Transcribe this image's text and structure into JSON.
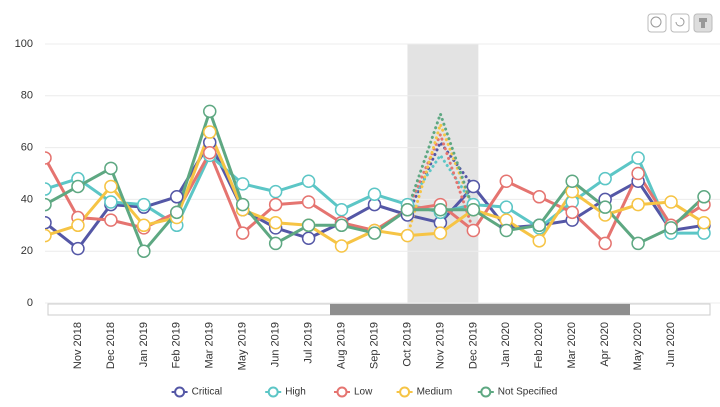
{
  "chart_data": {
    "type": "line",
    "categories": [
      null,
      "Nov 2018",
      "Dec 2018",
      "Jan 2019",
      "Feb 2019",
      "Mar 2019",
      "May 2019",
      "Jun 2019",
      "Jul 2019",
      "Aug 2019",
      "Sep 2019",
      "Oct 2019",
      "Nov 2019",
      "Dec 2019",
      "Jan 2020",
      "Feb 2020",
      "Mar 2020",
      "Apr 2020",
      "May 2020",
      "Jun 2020",
      null
    ],
    "ylim": [
      0,
      100
    ],
    "yticks": [
      0,
      20,
      40,
      60,
      80,
      100
    ],
    "grid": true,
    "highlight": [
      "Oct 2019",
      "Dec 2019"
    ],
    "series": [
      {
        "name": "Critical",
        "color": "#5457a6",
        "dotted_peak": 62,
        "values": [
          31,
          21,
          38,
          37,
          41,
          62,
          36,
          29,
          25,
          31,
          38,
          34,
          31,
          45,
          29,
          30,
          32,
          40,
          47,
          28,
          30
        ]
      },
      {
        "name": "High",
        "color": "#5cc6c6",
        "dotted_peak": 57,
        "values": [
          44,
          48,
          39,
          38,
          30,
          57,
          46,
          43,
          47,
          36,
          42,
          38,
          35,
          38,
          37,
          29,
          39,
          48,
          56,
          27,
          27
        ]
      },
      {
        "name": "Low",
        "color": "#e57470",
        "dotted_peak": 65,
        "values": [
          56,
          33,
          32,
          29,
          35,
          58,
          27,
          38,
          39,
          31,
          28,
          36,
          38,
          28,
          47,
          41,
          35,
          23,
          50,
          30,
          38
        ]
      },
      {
        "name": "Medium",
        "color": "#f6c445",
        "dotted_peak": 69,
        "values": [
          26,
          30,
          45,
          30,
          33,
          66,
          36,
          31,
          30,
          22,
          28,
          26,
          27,
          36,
          32,
          24,
          43,
          34,
          38,
          39,
          31
        ]
      },
      {
        "name": "Not Specified",
        "color": "#5ea882",
        "dotted_peak": 73,
        "values": [
          38,
          45,
          52,
          20,
          35,
          74,
          38,
          23,
          30,
          30,
          27,
          36,
          36,
          36,
          28,
          30,
          47,
          37,
          23,
          29,
          41
        ]
      }
    ]
  }
}
